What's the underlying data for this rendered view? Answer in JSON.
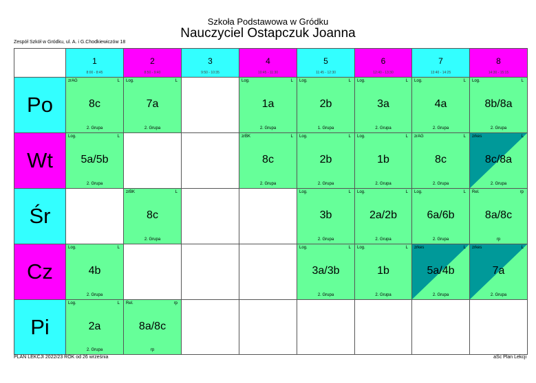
{
  "header": {
    "school": "Szkoła Podstawowa w Gródku",
    "teacher": "Nauczyciel Ostapczuk Joanna",
    "address": "Zespół Szkół w Gródku, ul. A. i G.Chodkiewiczów 18"
  },
  "footer": {
    "left": "PLAN LEKCJI  2022/23  ROK od 26 września",
    "right": "aSc Plan Lekcji"
  },
  "colors": {
    "cyan": "#33ffff",
    "magenta": "#ff00ff",
    "lesson_green": "#66ff99",
    "special_teal": "#009999"
  },
  "periods": [
    {
      "num": "1",
      "time": "8:00 - 8:45",
      "color": "cyan"
    },
    {
      "num": "2",
      "time": "8:50 - 9:40",
      "color": "magenta"
    },
    {
      "num": "3",
      "time": "9:50 - 10:35",
      "color": "cyan"
    },
    {
      "num": "4",
      "time": "10:45 - 11:30",
      "color": "magenta"
    },
    {
      "num": "5",
      "time": "11:45 - 12:30",
      "color": "cyan"
    },
    {
      "num": "6",
      "time": "12:40 - 13:30",
      "color": "magenta"
    },
    {
      "num": "7",
      "time": "13:40 - 14:25",
      "color": "cyan"
    },
    {
      "num": "8",
      "time": "14:30 - 15:15",
      "color": "magenta"
    }
  ],
  "days": [
    {
      "label": "Po",
      "color": "cyan"
    },
    {
      "label": "Wt",
      "color": "magenta"
    },
    {
      "label": "Śr",
      "color": "cyan"
    },
    {
      "label": "Cz",
      "color": "magenta"
    },
    {
      "label": "Pi",
      "color": "cyan"
    }
  ],
  "schedule": [
    [
      {
        "subject": "zrAG",
        "flag": "L",
        "cls": "8c",
        "group": "2. Grupa"
      },
      {
        "subject": "Log.",
        "flag": "L",
        "cls": "7a",
        "group": "2. Grupa"
      },
      null,
      {
        "subject": "Log.",
        "flag": "L",
        "cls": "1a",
        "group": "2. Grupa"
      },
      {
        "subject": "Log.",
        "flag": "L",
        "cls": "2b",
        "group": "1. Grupa"
      },
      {
        "subject": "Log.",
        "flag": "L",
        "cls": "3a",
        "group": "2. Grupa"
      },
      {
        "subject": "Log.",
        "flag": "L",
        "cls": "4a",
        "group": "2. Grupa"
      },
      {
        "subject": "Log.",
        "flag": "L",
        "cls": "8b/8a",
        "group": "2. Grupa"
      }
    ],
    [
      {
        "subject": "Log.",
        "flag": "L",
        "cls": "5a/5b",
        "group": "2. Grupa"
      },
      null,
      null,
      {
        "subject": "zrBK",
        "flag": "L",
        "cls": "8c",
        "group": "2. Grupa"
      },
      {
        "subject": "Log.",
        "flag": "L",
        "cls": "2b",
        "group": "2. Grupa"
      },
      {
        "subject": "Log.",
        "flag": "L",
        "cls": "1b",
        "group": "2. Grupa"
      },
      {
        "subject": "zrAG",
        "flag": "L",
        "cls": "8c",
        "group": "2. Grupa"
      },
      {
        "subject": "zrkes",
        "flag": "L",
        "cls": "8c/8a",
        "group": "2. Grupa",
        "special": true
      }
    ],
    [
      null,
      {
        "subject": "zrBK",
        "flag": "L",
        "cls": "8c",
        "group": "2. Grupa"
      },
      null,
      null,
      {
        "subject": "Log.",
        "flag": "L",
        "cls": "3b",
        "group": "2. Grupa"
      },
      {
        "subject": "Log.",
        "flag": "L",
        "cls": "2a/2b",
        "group": "2. Grupa"
      },
      {
        "subject": "Log.",
        "flag": "L",
        "cls": "6a/6b",
        "group": "2. Grupa"
      },
      {
        "subject": "Rel.",
        "flag": "rp",
        "cls": "8a/8c",
        "group": "rp"
      }
    ],
    [
      {
        "subject": "Log.",
        "flag": "L",
        "cls": "4b",
        "group": "2. Grupa"
      },
      null,
      null,
      null,
      {
        "subject": "Log.",
        "flag": "L",
        "cls": "3a/3b",
        "group": "2. Grupa"
      },
      {
        "subject": "Log.",
        "flag": "L",
        "cls": "1b",
        "group": "2. Grupa"
      },
      {
        "subject": "zrkes",
        "flag": "L",
        "cls": "5a/4b",
        "group": "2. Grupa",
        "special": true
      },
      {
        "subject": "zrkes",
        "flag": "L",
        "cls": "7a",
        "group": "2. Grupa",
        "special": true
      }
    ],
    [
      {
        "subject": "Log.",
        "flag": "L",
        "cls": "2a",
        "group": "2. Grupa"
      },
      {
        "subject": "Rel.",
        "flag": "rp",
        "cls": "8a/8c",
        "group": "rp"
      },
      null,
      null,
      null,
      null,
      null,
      null
    ]
  ]
}
